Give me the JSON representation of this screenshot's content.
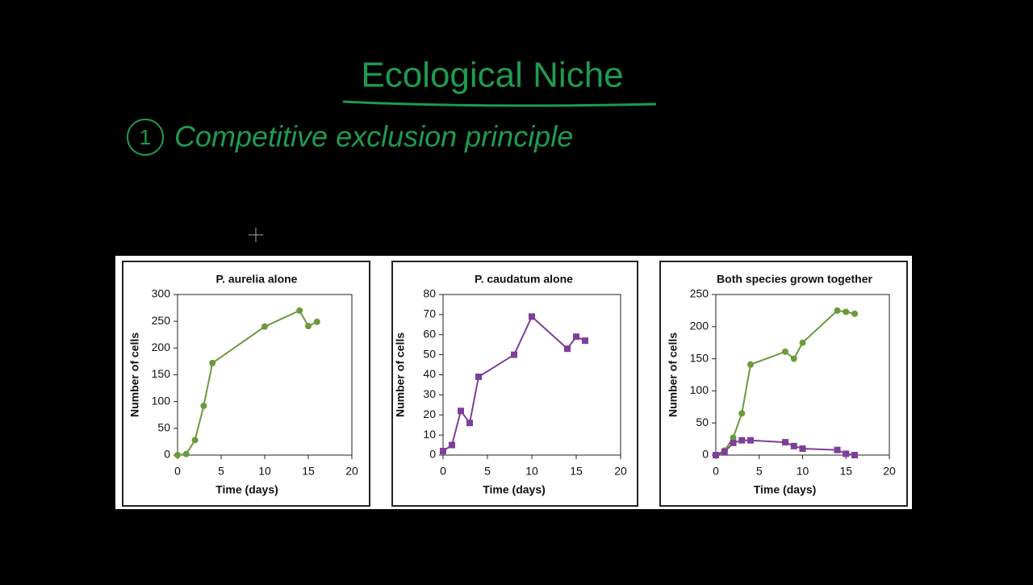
{
  "title": "Ecological Niche",
  "note_number": "1",
  "note": "Competitive exclusion principle",
  "chart_data": [
    {
      "type": "line",
      "title": "P. aurelia alone",
      "x_label": "Time (days)",
      "y_label": "Number of cells",
      "x": [
        0,
        1,
        2,
        3,
        4,
        10,
        14,
        15,
        16
      ],
      "series": [
        {
          "color": "#6a9b3c",
          "marker": "circle",
          "values": [
            0,
            2,
            28,
            92,
            172,
            240,
            270,
            241,
            249
          ]
        }
      ],
      "xlim": [
        0,
        20
      ],
      "xticks": [
        0,
        5,
        10,
        15,
        20
      ],
      "ylim": [
        0,
        300
      ],
      "yticks": [
        0,
        50,
        100,
        150,
        200,
        250,
        300
      ]
    },
    {
      "type": "line",
      "title": "P. caudatum alone",
      "x_label": "Time (days)",
      "y_label": "Number of cells",
      "x": [
        0,
        1,
        2,
        3,
        4,
        8,
        10,
        14,
        15,
        16
      ],
      "series": [
        {
          "color": "#7d3f98",
          "marker": "square",
          "values": [
            2,
            5,
            22,
            16,
            39,
            50,
            69,
            53,
            59,
            57
          ]
        }
      ],
      "xlim": [
        0,
        20
      ],
      "xticks": [
        0,
        5,
        10,
        15,
        20
      ],
      "ylim": [
        0,
        80
      ],
      "yticks": [
        0,
        10,
        20,
        30,
        40,
        50,
        60,
        70,
        80
      ]
    },
    {
      "type": "line",
      "title": "Both species grown together",
      "x_label": "Time (days)",
      "y_label": "Number of cells",
      "x": [
        0,
        1,
        2,
        3,
        4,
        8,
        9,
        10,
        14,
        15,
        16
      ],
      "series": [
        {
          "color": "#6a9b3c",
          "marker": "circle",
          "values": [
            0,
            7,
            27,
            65,
            141,
            161,
            150,
            175,
            225,
            223,
            220
          ]
        },
        {
          "color": "#7d3f98",
          "marker": "square",
          "values": [
            0,
            5,
            19,
            23,
            23,
            20,
            14,
            10,
            8,
            2,
            0
          ]
        }
      ],
      "xlim": [
        0,
        20
      ],
      "xticks": [
        0,
        5,
        10,
        15,
        20
      ],
      "ylim": [
        0,
        250
      ],
      "yticks": [
        0,
        50,
        100,
        150,
        200,
        250
      ]
    }
  ]
}
